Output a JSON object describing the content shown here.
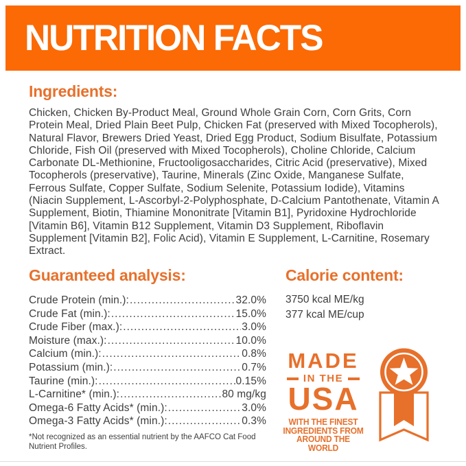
{
  "colors": {
    "bar_orange": "#FB6A05",
    "heading_orange": "#E7702B",
    "badge_orange": "#E7702B",
    "body_text": "#3D3D3D",
    "header_text": "#FFFFFF"
  },
  "header": {
    "title": "NUTRITION FACTS"
  },
  "ingredients": {
    "heading": "Ingredients:",
    "text": "Chicken, Chicken By-Product Meal, Ground Whole Grain Corn, Corn Grits, Corn Protein Meal, Dried Plain Beet Pulp, Chicken Fat (preserved with Mixed Tocopherols), Natural Flavor, Brewers Dried Yeast, Dried Egg Product, Sodium Bisulfate, Potassium Chloride, Fish Oil (preserved with Mixed Tocopherols), Choline Chloride, Calcium Carbonate DL-Methionine, Fructooligosaccharides, Citric Acid (preservative), Mixed Tocopherols (preservative), Taurine, Minerals (Zinc Oxide, Manganese Sulfate, Ferrous Sulfate, Copper Sulfate, Sodium Selenite, Potassium Iodide), Vitamins (Niacin Supplement, L-Ascorbyl-2-Polyphosphate, D-Calcium Pantothenate, Vitamin A Supplement, Biotin, Thiamine Mononitrate [Vitamin B1], Pyridoxine Hydrochloride [Vitamin B6], Vitamin B12 Supplement, Vitamin D3 Supplement, Riboflavin Supplement [Vitamin B2], Folic Acid), Vitamin E Supplement, L-Carnitine, Rosemary Extract."
  },
  "analysis": {
    "heading": "Guaranteed analysis:",
    "rows": [
      {
        "label": "Crude Protein (min.):",
        "value": "32.0%"
      },
      {
        "label": "Crude Fat (min.):",
        "value": "15.0%"
      },
      {
        "label": "Crude Fiber (max.):",
        "value": "3.0%"
      },
      {
        "label": "Moisture (max.):",
        "value": "10.0%"
      },
      {
        "label": "Calcium (min.):",
        "value": "0.8%"
      },
      {
        "label": "Potassium (min.):",
        "value": "0.7%"
      },
      {
        "label": "Taurine (min.):",
        "value": "0.15%"
      },
      {
        "label": "L-Carnitine* (min.):",
        "value": "80 mg/kg"
      },
      {
        "label": "Omega-6 Fatty Acids* (min.):",
        "value": "3.0%"
      },
      {
        "label": "Omega-3 Fatty Acids* (min.):",
        "value": "0.3%"
      }
    ]
  },
  "calories": {
    "heading": "Calorie content:",
    "lines": [
      "3750 kcal ME/kg",
      "377 kcal ME/cup"
    ]
  },
  "badge": {
    "made": "MADE",
    "in_the": "IN THE",
    "usa": "USA",
    "tagline": [
      "WITH THE FINEST",
      "INGREDIENTS FROM",
      "AROUND THE WORLD"
    ],
    "icon": "star-ribbon-icon"
  },
  "footnote": "*Not recognized as an essential nutrient by the AAFCO Cat Food Nutrient Profiles."
}
